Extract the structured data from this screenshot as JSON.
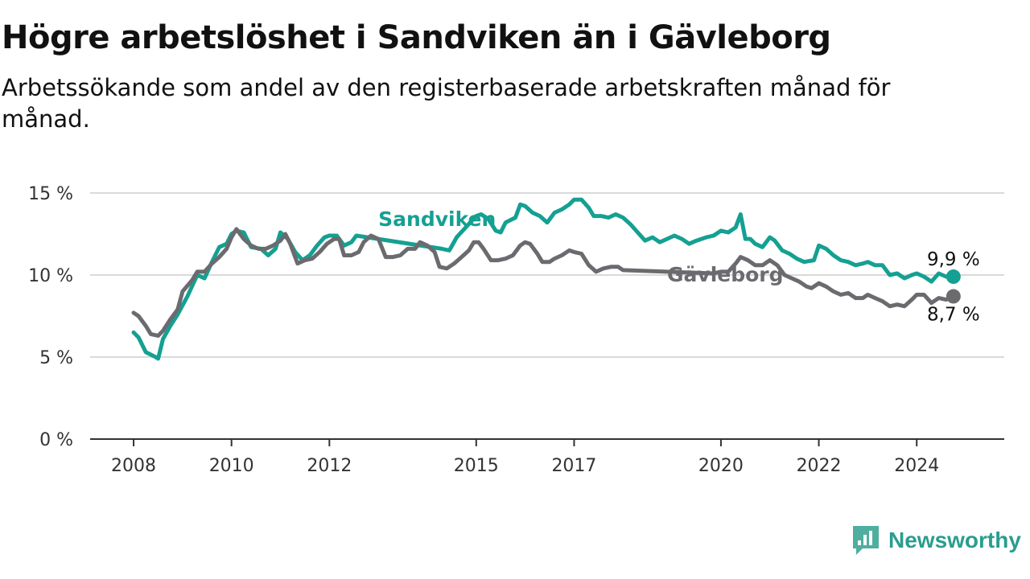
{
  "title": "Högre arbetslöshet i Sandviken än i Gävleborg",
  "subtitle": "Arbetssökande som andel av den registerbaserade arbetskraften månad för månad.",
  "brand": {
    "name": "Newsworthy",
    "icon": "newsworthy-logo-icon"
  },
  "colors": {
    "sandviken": "#14a092",
    "gavleborg": "#6b6b6f",
    "grid": "#d9d9d9",
    "axis": "#333333"
  },
  "chart_data": {
    "type": "line",
    "ylim": [
      0,
      15
    ],
    "xlim": [
      2007.95,
      2024.95
    ],
    "y_ticks": [
      {
        "value": 0,
        "label": "0 %"
      },
      {
        "value": 5,
        "label": "5 %"
      },
      {
        "value": 10,
        "label": "10 %"
      },
      {
        "value": 15,
        "label": "15 %"
      }
    ],
    "x_ticks": [
      {
        "value": 2008,
        "label": "2008"
      },
      {
        "value": 2010,
        "label": "2010"
      },
      {
        "value": 2012,
        "label": "2012"
      },
      {
        "value": 2015,
        "label": "2015"
      },
      {
        "value": 2017,
        "label": "2017"
      },
      {
        "value": 2020,
        "label": "2020"
      },
      {
        "value": 2022,
        "label": "2022"
      },
      {
        "value": 2024,
        "label": "2024"
      }
    ],
    "grid": true,
    "series": [
      {
        "name": "Sandviken",
        "color": "#14a092",
        "end_label": "9,9 %",
        "points": [
          [
            2008.0,
            6.5
          ],
          [
            2008.1,
            6.2
          ],
          [
            2008.25,
            5.3
          ],
          [
            2008.45,
            5.0
          ],
          [
            2008.5,
            4.9
          ],
          [
            2008.6,
            6.1
          ],
          [
            2008.75,
            6.9
          ],
          [
            2008.9,
            7.6
          ],
          [
            2009.1,
            8.7
          ],
          [
            2009.3,
            10.0
          ],
          [
            2009.45,
            9.8
          ],
          [
            2009.6,
            10.8
          ],
          [
            2009.75,
            11.7
          ],
          [
            2009.9,
            11.9
          ],
          [
            2010.0,
            12.5
          ],
          [
            2010.1,
            12.7
          ],
          [
            2010.25,
            12.6
          ],
          [
            2010.4,
            11.7
          ],
          [
            2010.6,
            11.6
          ],
          [
            2010.75,
            11.2
          ],
          [
            2010.9,
            11.6
          ],
          [
            2011.0,
            12.6
          ],
          [
            2011.15,
            12.2
          ],
          [
            2011.3,
            11.4
          ],
          [
            2011.45,
            10.9
          ],
          [
            2011.6,
            11.2
          ],
          [
            2011.75,
            11.8
          ],
          [
            2011.9,
            12.3
          ],
          [
            2012.0,
            12.4
          ],
          [
            2012.15,
            12.4
          ],
          [
            2012.3,
            11.8
          ],
          [
            2012.45,
            12.0
          ],
          [
            2012.55,
            12.4
          ],
          [
            2014.3,
            11.6
          ],
          [
            2014.45,
            11.5
          ],
          [
            2014.6,
            12.3
          ],
          [
            2015.0,
            13.6
          ],
          [
            2015.1,
            13.7
          ],
          [
            2015.25,
            13.4
          ],
          [
            2015.4,
            12.7
          ],
          [
            2015.5,
            12.6
          ],
          [
            2015.6,
            13.2
          ],
          [
            2015.8,
            13.5
          ],
          [
            2015.9,
            14.3
          ],
          [
            2016.0,
            14.2
          ],
          [
            2016.15,
            13.8
          ],
          [
            2016.3,
            13.6
          ],
          [
            2016.45,
            13.2
          ],
          [
            2016.6,
            13.8
          ],
          [
            2016.75,
            14.0
          ],
          [
            2016.9,
            14.3
          ],
          [
            2017.0,
            14.6
          ],
          [
            2017.15,
            14.6
          ],
          [
            2017.3,
            14.1
          ],
          [
            2017.4,
            13.6
          ],
          [
            2017.55,
            13.6
          ],
          [
            2017.7,
            13.5
          ],
          [
            2017.85,
            13.7
          ],
          [
            2018.0,
            13.5
          ],
          [
            2018.15,
            13.1
          ],
          [
            2018.3,
            12.6
          ],
          [
            2018.45,
            12.1
          ],
          [
            2018.6,
            12.3
          ],
          [
            2018.75,
            12.0
          ],
          [
            2018.9,
            12.2
          ],
          [
            2019.05,
            12.4
          ],
          [
            2019.2,
            12.2
          ],
          [
            2019.35,
            11.9
          ],
          [
            2019.5,
            12.1
          ],
          [
            2019.7,
            12.3
          ],
          [
            2019.85,
            12.4
          ],
          [
            2020.0,
            12.7
          ],
          [
            2020.15,
            12.6
          ],
          [
            2020.3,
            12.9
          ],
          [
            2020.4,
            13.7
          ],
          [
            2020.5,
            12.2
          ],
          [
            2020.6,
            12.2
          ],
          [
            2020.7,
            11.9
          ],
          [
            2020.85,
            11.7
          ],
          [
            2021.0,
            12.3
          ],
          [
            2021.1,
            12.1
          ],
          [
            2021.25,
            11.5
          ],
          [
            2021.4,
            11.3
          ],
          [
            2021.55,
            11.0
          ],
          [
            2021.7,
            10.8
          ],
          [
            2021.9,
            10.9
          ],
          [
            2022.0,
            11.8
          ],
          [
            2022.15,
            11.6
          ],
          [
            2022.3,
            11.2
          ],
          [
            2022.45,
            10.9
          ],
          [
            2022.6,
            10.8
          ],
          [
            2022.75,
            10.6
          ],
          [
            2022.9,
            10.7
          ],
          [
            2023.0,
            10.8
          ],
          [
            2023.15,
            10.6
          ],
          [
            2023.3,
            10.6
          ],
          [
            2023.45,
            10.0
          ],
          [
            2023.6,
            10.1
          ],
          [
            2023.75,
            9.8
          ],
          [
            2023.9,
            10.0
          ],
          [
            2024.0,
            10.1
          ],
          [
            2024.15,
            9.9
          ],
          [
            2024.3,
            9.6
          ],
          [
            2024.45,
            10.1
          ],
          [
            2024.6,
            9.9
          ],
          [
            2024.75,
            9.9
          ]
        ]
      },
      {
        "name": "Gävleborg",
        "color": "#6b6b6f",
        "end_label": "8,7 %",
        "points": [
          [
            2008.0,
            7.7
          ],
          [
            2008.1,
            7.5
          ],
          [
            2008.25,
            6.9
          ],
          [
            2008.35,
            6.4
          ],
          [
            2008.5,
            6.3
          ],
          [
            2008.6,
            6.6
          ],
          [
            2008.75,
            7.3
          ],
          [
            2008.9,
            7.9
          ],
          [
            2009.0,
            9.0
          ],
          [
            2009.2,
            9.7
          ],
          [
            2009.3,
            10.2
          ],
          [
            2009.45,
            10.2
          ],
          [
            2009.6,
            10.7
          ],
          [
            2009.75,
            11.1
          ],
          [
            2009.9,
            11.6
          ],
          [
            2010.0,
            12.3
          ],
          [
            2010.1,
            12.8
          ],
          [
            2010.25,
            12.2
          ],
          [
            2010.4,
            11.8
          ],
          [
            2010.55,
            11.6
          ],
          [
            2010.7,
            11.6
          ],
          [
            2010.85,
            11.8
          ],
          [
            2011.0,
            12.1
          ],
          [
            2011.1,
            12.5
          ],
          [
            2011.2,
            11.9
          ],
          [
            2011.35,
            10.7
          ],
          [
            2011.5,
            10.9
          ],
          [
            2011.65,
            11.0
          ],
          [
            2011.8,
            11.4
          ],
          [
            2011.95,
            11.9
          ],
          [
            2012.1,
            12.2
          ],
          [
            2012.2,
            12.2
          ],
          [
            2012.3,
            11.2
          ],
          [
            2012.45,
            11.2
          ],
          [
            2012.6,
            11.4
          ],
          [
            2012.7,
            12.0
          ],
          [
            2012.85,
            12.4
          ],
          [
            2013.0,
            12.2
          ],
          [
            2013.15,
            11.1
          ],
          [
            2013.3,
            11.1
          ],
          [
            2013.45,
            11.2
          ],
          [
            2013.6,
            11.6
          ],
          [
            2013.75,
            11.6
          ],
          [
            2013.85,
            12.0
          ],
          [
            2014.0,
            11.8
          ],
          [
            2014.15,
            11.4
          ],
          [
            2014.25,
            10.5
          ],
          [
            2014.4,
            10.4
          ],
          [
            2014.55,
            10.7
          ],
          [
            2014.7,
            11.1
          ],
          [
            2014.85,
            11.5
          ],
          [
            2014.95,
            12.0
          ],
          [
            2015.05,
            12.0
          ],
          [
            2015.15,
            11.6
          ],
          [
            2015.3,
            10.9
          ],
          [
            2015.45,
            10.9
          ],
          [
            2015.6,
            11.0
          ],
          [
            2015.75,
            11.2
          ],
          [
            2015.9,
            11.8
          ],
          [
            2016.0,
            12.0
          ],
          [
            2016.1,
            11.9
          ],
          [
            2016.25,
            11.3
          ],
          [
            2016.35,
            10.8
          ],
          [
            2016.5,
            10.8
          ],
          [
            2016.6,
            11.0
          ],
          [
            2016.75,
            11.2
          ],
          [
            2016.9,
            11.5
          ],
          [
            2017.0,
            11.4
          ],
          [
            2017.15,
            11.3
          ],
          [
            2017.3,
            10.6
          ],
          [
            2017.45,
            10.2
          ],
          [
            2017.6,
            10.4
          ],
          [
            2017.75,
            10.5
          ],
          [
            2017.9,
            10.5
          ],
          [
            2018.0,
            10.3
          ],
          [
            2019.85,
            10.1
          ],
          [
            2020.0,
            10.2
          ],
          [
            2020.15,
            10.2
          ],
          [
            2020.3,
            10.7
          ],
          [
            2020.4,
            11.1
          ],
          [
            2020.55,
            10.9
          ],
          [
            2020.7,
            10.6
          ],
          [
            2020.85,
            10.6
          ],
          [
            2021.0,
            10.9
          ],
          [
            2021.15,
            10.6
          ],
          [
            2021.3,
            10.0
          ],
          [
            2021.45,
            9.8
          ],
          [
            2021.6,
            9.6
          ],
          [
            2021.75,
            9.3
          ],
          [
            2021.85,
            9.2
          ],
          [
            2022.0,
            9.5
          ],
          [
            2022.15,
            9.3
          ],
          [
            2022.3,
            9.0
          ],
          [
            2022.45,
            8.8
          ],
          [
            2022.6,
            8.9
          ],
          [
            2022.75,
            8.6
          ],
          [
            2022.9,
            8.6
          ],
          [
            2023.0,
            8.8
          ],
          [
            2023.15,
            8.6
          ],
          [
            2023.3,
            8.4
          ],
          [
            2023.45,
            8.1
          ],
          [
            2023.6,
            8.2
          ],
          [
            2023.75,
            8.1
          ],
          [
            2023.9,
            8.5
          ],
          [
            2024.0,
            8.8
          ],
          [
            2024.15,
            8.8
          ],
          [
            2024.3,
            8.3
          ],
          [
            2024.45,
            8.6
          ],
          [
            2024.6,
            8.5
          ],
          [
            2024.75,
            8.7
          ]
        ]
      }
    ],
    "series_labels": [
      {
        "text": "Sandviken",
        "x": 2013.0,
        "y": 13.0
      },
      {
        "text": "Gävleborg",
        "x": 2018.9,
        "y": 9.6
      }
    ]
  }
}
